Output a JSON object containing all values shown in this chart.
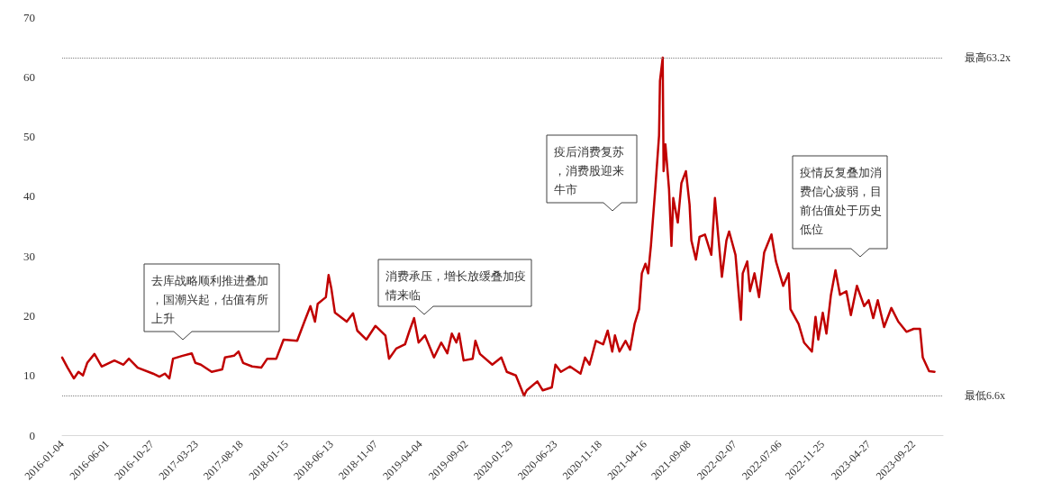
{
  "chart_data": {
    "type": "line",
    "x": [
      "2016-01-04",
      "2016-01-22",
      "2016-02-12",
      "2016-02-27",
      "2016-03-13",
      "2016-03-27",
      "2016-04-20",
      "2016-05-14",
      "2016-06-25",
      "2016-07-25",
      "2016-08-12",
      "2016-09-10",
      "2016-10-31",
      "2016-11-21",
      "2016-12-09",
      "2016-12-24",
      "2017-01-05",
      "2017-02-06",
      "2017-03-08",
      "2017-03-20",
      "2017-04-07",
      "2017-05-13",
      "2017-06-17",
      "2017-06-26",
      "2017-07-26",
      "2017-08-10",
      "2017-08-25",
      "2017-09-24",
      "2017-10-24",
      "2017-11-13",
      "2017-12-13",
      "2018-01-06",
      "2018-02-20",
      "2018-03-16",
      "2018-04-05",
      "2018-04-20",
      "2018-04-29",
      "2018-05-26",
      "2018-06-04",
      "2018-06-13",
      "2018-06-25",
      "2018-08-03",
      "2018-08-24",
      "2018-09-07",
      "2018-10-07",
      "2018-11-06",
      "2018-12-09",
      "2018-12-21",
      "2019-01-14",
      "2019-02-12",
      "2019-02-27",
      "2019-03-14",
      "2019-03-29",
      "2019-04-19",
      "2019-05-19",
      "2019-06-12",
      "2019-07-02",
      "2019-07-17",
      "2019-08-01",
      "2019-08-10",
      "2019-08-25",
      "2019-09-24",
      "2019-10-03",
      "2019-10-18",
      "2019-11-28",
      "2019-12-28",
      "2020-01-15",
      "2020-02-14",
      "2020-03-12",
      "2020-03-21",
      "2020-04-25",
      "2020-05-13",
      "2020-06-12",
      "2020-06-24",
      "2020-07-12",
      "2020-08-11",
      "2020-09-15",
      "2020-09-30",
      "2020-10-15",
      "2020-11-05",
      "2020-11-29",
      "2020-12-14",
      "2020-12-29",
      "2021-01-07",
      "2021-01-22",
      "2021-02-11",
      "2021-02-26",
      "2021-03-13",
      "2021-03-28",
      "2021-04-06",
      "2021-04-18",
      "2021-04-27",
      "2021-05-06",
      "2021-05-21",
      "2021-06-02",
      "2021-06-05",
      "2021-06-14",
      "2021-06-17",
      "2021-06-23",
      "2021-07-05",
      "2021-07-13",
      "2021-07-19",
      "2021-08-03",
      "2021-08-15",
      "2021-08-30",
      "2021-09-11",
      "2021-09-17",
      "2021-10-02",
      "2021-10-14",
      "2021-11-01",
      "2021-11-22",
      "2021-12-04",
      "2021-12-27",
      "2022-01-11",
      "2022-01-20",
      "2022-02-10",
      "2022-02-28",
      "2022-03-06",
      "2022-03-21",
      "2022-03-30",
      "2022-04-14",
      "2022-04-29",
      "2022-05-16",
      "2022-06-09",
      "2022-06-24",
      "2022-07-18",
      "2022-08-05",
      "2022-08-11",
      "2022-09-07",
      "2022-09-25",
      "2022-10-21",
      "2022-11-02",
      "2022-11-11",
      "2022-11-26",
      "2022-12-08",
      "2022-12-23",
      "2023-01-07",
      "2023-01-22",
      "2023-02-12",
      "2023-02-27",
      "2023-03-19",
      "2023-04-12",
      "2023-04-27",
      "2023-05-12",
      "2023-05-27",
      "2023-06-17",
      "2023-07-11",
      "2023-08-03",
      "2023-08-30",
      "2023-09-23",
      "2023-10-14",
      "2023-10-23",
      "2023-11-13",
      "2023-12-01"
    ],
    "series": [
      {
        "color": "#c00000",
        "values": [
          13.0,
          11.3,
          9.5,
          10.6,
          10.0,
          12.1,
          13.6,
          11.5,
          12.5,
          11.8,
          12.8,
          11.3,
          10.3,
          9.8,
          10.3,
          9.5,
          12.8,
          13.3,
          13.7,
          12.1,
          11.8,
          10.6,
          11.0,
          13.0,
          13.3,
          14.0,
          12.1,
          11.5,
          11.3,
          12.8,
          12.8,
          16.0,
          15.8,
          19.0,
          21.6,
          19.0,
          22.0,
          23.1,
          26.8,
          24.6,
          20.5,
          19.0,
          20.4,
          17.5,
          16.0,
          18.3,
          16.7,
          12.8,
          14.5,
          15.2,
          17.5,
          19.6,
          15.5,
          16.7,
          13.0,
          15.5,
          13.7,
          17.0,
          15.5,
          17.0,
          12.5,
          12.8,
          15.8,
          13.6,
          11.8,
          13.0,
          10.6,
          10.0,
          6.6,
          7.5,
          9.0,
          7.5,
          8.0,
          11.8,
          10.6,
          11.5,
          10.3,
          13.0,
          11.8,
          15.8,
          15.2,
          17.5,
          14.0,
          16.7,
          14.0,
          15.8,
          14.3,
          18.6,
          21.1,
          27.1,
          28.7,
          27.1,
          31.7,
          41.6,
          50.2,
          59.3,
          63.2,
          44.2,
          48.7,
          41.2,
          31.7,
          39.7,
          35.6,
          42.2,
          44.2,
          38.6,
          32.6,
          29.4,
          33.2,
          33.6,
          30.2,
          39.7,
          26.5,
          32.6,
          34.1,
          30.2,
          19.3,
          27.1,
          29.1,
          24.1,
          27.1,
          23.1,
          30.6,
          33.6,
          29.1,
          25.0,
          27.1,
          21.1,
          18.6,
          15.5,
          14.0,
          19.8,
          16.0,
          20.5,
          17.0,
          23.5,
          27.6,
          23.5,
          24.1,
          20.1,
          25.0,
          21.6,
          22.6,
          19.6,
          22.6,
          18.1,
          21.3,
          19.0,
          17.3,
          17.8,
          17.8,
          13.0,
          10.7,
          10.6
        ]
      }
    ],
    "xlim": [
      "2016-01-04",
      "2023-12-29"
    ],
    "xticks": [
      "2016-01-04",
      "2016-06-01",
      "2016-10-27",
      "2017-03-23",
      "2017-08-18",
      "2018-01-15",
      "2018-06-13",
      "2018-11-07",
      "2019-04-04",
      "2019-09-02",
      "2020-01-29",
      "2020-06-23",
      "2020-11-18",
      "2021-04-16",
      "2021-09-08",
      "2022-02-07",
      "2022-07-06",
      "2022-11-25",
      "2023-04-27",
      "2023-09-22"
    ],
    "ylim": [
      0,
      70
    ],
    "yticks": [
      0,
      10,
      20,
      30,
      40,
      50,
      60,
      70
    ],
    "grid": false,
    "marker": "none",
    "line_style": "solid",
    "ref_lines": [
      {
        "axis": "y",
        "value": 63.2,
        "label": "最高63.2x",
        "color": "#808080",
        "line_style": "dotted"
      },
      {
        "axis": "y",
        "value": 6.6,
        "label": "最低6.6x",
        "color": "#808080",
        "line_style": "dotted"
      }
    ],
    "annotations": [
      "去库战略顺利推进叠加，国潮兴起，估值有所上升",
      "消费承压，增长放缓叠加疫情来临",
      "疫后消费复苏，消费股迎来牛市",
      "疫情反复叠加消费信心疲弱，目前估值处于历史低位"
    ]
  }
}
